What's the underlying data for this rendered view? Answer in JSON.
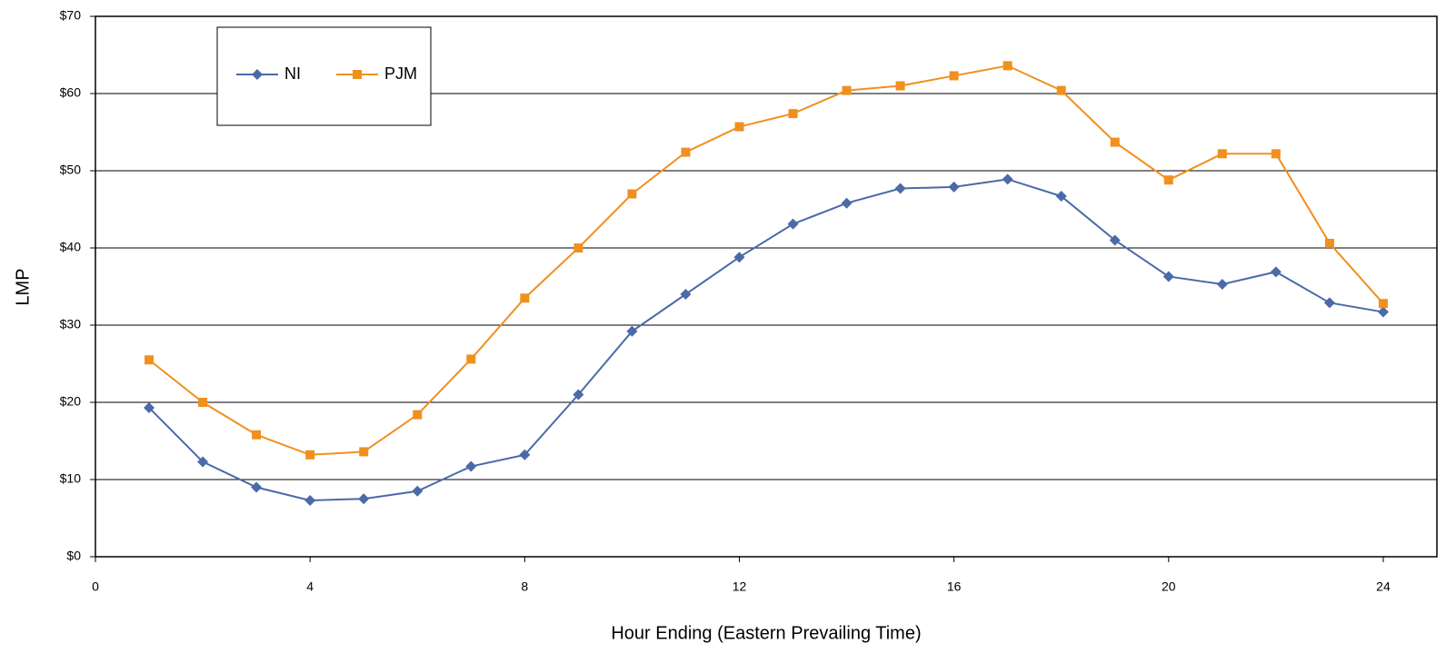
{
  "chart_data": {
    "type": "line",
    "x_label": "Hour Ending (Eastern Prevailing Time)",
    "y_label": "LMP",
    "x": [
      1,
      2,
      3,
      4,
      5,
      6,
      7,
      8,
      9,
      10,
      11,
      12,
      13,
      14,
      15,
      16,
      17,
      18,
      19,
      20,
      21,
      22,
      23,
      24
    ],
    "series": [
      {
        "name": "NI",
        "color": "#4a6aa8",
        "marker": "diamond",
        "values": [
          19.3,
          12.3,
          9.0,
          7.3,
          7.5,
          8.5,
          11.7,
          13.2,
          21.0,
          29.2,
          34.0,
          38.8,
          43.1,
          45.8,
          47.7,
          47.9,
          48.9,
          46.7,
          41.0,
          36.3,
          35.3,
          36.9,
          32.9,
          31.7
        ]
      },
      {
        "name": "PJM",
        "color": "#f0901f",
        "marker": "square",
        "values": [
          25.5,
          20.0,
          15.8,
          13.2,
          13.6,
          18.4,
          25.6,
          33.5,
          40.0,
          47.0,
          52.4,
          55.7,
          57.4,
          60.4,
          61.0,
          62.3,
          63.6,
          60.4,
          53.7,
          48.8,
          52.2,
          52.2,
          40.6,
          32.8
        ]
      }
    ],
    "xlim": [
      0,
      25
    ],
    "xticks": [
      0,
      4,
      8,
      12,
      16,
      20,
      24
    ],
    "ylim": [
      0,
      70
    ],
    "yticks": [
      {
        "value": 0,
        "label": "$0"
      },
      {
        "value": 10,
        "label": "$10"
      },
      {
        "value": 20,
        "label": "$20"
      },
      {
        "value": 30,
        "label": "$30"
      },
      {
        "value": 40,
        "label": "$40"
      },
      {
        "value": 50,
        "label": "$50"
      },
      {
        "value": 60,
        "label": "$60"
      },
      {
        "value": 70,
        "label": "$70"
      }
    ],
    "grid": true,
    "legend_position": "upper-left"
  }
}
